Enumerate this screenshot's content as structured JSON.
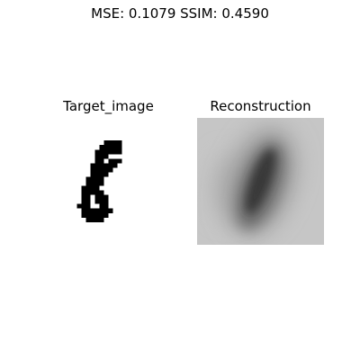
{
  "figure": {
    "suptitle": "MSE: 0.1079  SSIM: 0.4590"
  },
  "panels": {
    "target_title": "Target_image",
    "reconstruction_title": "Reconstruction"
  },
  "colors": {
    "background": "#ffffff",
    "ink": "#000000",
    "recon_background": "#c6c6c6",
    "recon_dark": "#2a2a2a"
  },
  "target_pixels": {
    "grid_size": 28,
    "rows": [
      [
        5,
        13,
        16
      ],
      [
        6,
        12,
        16
      ],
      [
        7,
        11,
        16
      ],
      [
        8,
        11,
        13
      ],
      [
        9,
        11,
        12
      ],
      [
        9,
        14,
        16
      ],
      [
        10,
        10,
        15
      ],
      [
        11,
        10,
        14
      ],
      [
        12,
        10,
        13
      ],
      [
        13,
        9,
        12
      ],
      [
        14,
        9,
        12
      ],
      [
        15,
        8,
        11
      ],
      [
        16,
        8,
        9
      ],
      [
        16,
        10,
        12
      ],
      [
        17,
        8,
        9
      ],
      [
        17,
        11,
        13
      ],
      [
        18,
        8,
        9
      ],
      [
        18,
        11,
        13
      ],
      [
        19,
        7,
        9
      ],
      [
        19,
        12,
        13
      ],
      [
        20,
        8,
        14
      ],
      [
        21,
        8,
        13
      ],
      [
        22,
        9,
        12
      ]
    ]
  }
}
